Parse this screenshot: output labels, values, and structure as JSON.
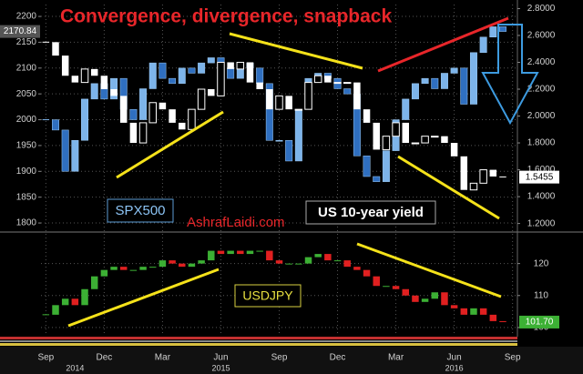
{
  "chart_data": [
    {
      "type": "candlestick",
      "title": "Convergence, divergence, snapback",
      "annotations": [
        "AshrafLaidi.com"
      ],
      "series": [
        {
          "name": "SPX500",
          "color": "#7db4ea",
          "down_color": "#2f6fc0",
          "axis": "y",
          "values": [
            2000,
            1980,
            1900,
            1960,
            2040,
            2070,
            2040,
            2080,
            2020,
            2000,
            2060,
            2110,
            2080,
            2070,
            2100,
            2090,
            2110,
            2120,
            2100,
            2080,
            2110,
            2100,
            2070,
            1960,
            1960,
            1920,
            2020,
            2080,
            2090,
            2080,
            2060,
            2050,
            1930,
            1890,
            1880,
            1940,
            2000,
            2040,
            2070,
            2080,
            2060,
            2090,
            2100,
            2030,
            2130,
            2160,
            2180,
            2170.84,
            null
          ],
          "price_tag": 2170.84
        },
        {
          "name": "US 10-year yield",
          "color": "#ffffff",
          "down_color": "#ffffff",
          "hollow_up": true,
          "axis": "y2",
          "values": [
            2.55,
            2.45,
            2.3,
            2.25,
            2.35,
            2.3,
            2.2,
            2.15,
            1.95,
            1.8,
            1.95,
            2.1,
            2.05,
            1.95,
            1.9,
            2.05,
            2.2,
            2.15,
            2.4,
            2.35,
            2.4,
            2.25,
            2.2,
            2.05,
            2.15,
            2.05,
            2.05,
            2.25,
            2.3,
            2.25,
            2.25,
            2.25,
            2.05,
            1.95,
            1.75,
            1.85,
            1.95,
            1.8,
            1.8,
            1.85,
            1.85,
            1.8,
            1.7,
            1.45,
            1.5,
            1.6,
            1.55,
            1.5455,
            null
          ],
          "price_tag": 1.5455
        }
      ],
      "ylim": [
        1786,
        2223
      ],
      "yticks": [
        1800,
        1850,
        1900,
        1950,
        2000,
        2050,
        2100,
        2150,
        2200
      ],
      "y2lim": [
        1.15,
        2.83
      ],
      "y2ticks": [
        {
          "value": 1.2,
          "label": "1.2000"
        },
        {
          "value": 1.4,
          "label": "1.4000"
        },
        {
          "value": 1.6,
          "label": "1.6000"
        },
        {
          "value": 1.8,
          "label": "1.8000"
        },
        {
          "value": 2.0,
          "label": "2.0000"
        },
        {
          "value": 2.2,
          "label": "2.2000"
        },
        {
          "value": 2.4,
          "label": "2.4000"
        },
        {
          "value": 2.6,
          "label": "2.6000"
        },
        {
          "value": 2.8,
          "label": "2.8000"
        }
      ],
      "y_axis_side": "left",
      "grid": true
    },
    {
      "type": "candlestick",
      "categories": [
        "Sep",
        null,
        null,
        null,
        null,
        null,
        "Dec",
        null,
        null,
        null,
        null,
        null,
        "Mar",
        null,
        null,
        null,
        null,
        null,
        "Jun",
        null,
        null,
        null,
        null,
        null,
        "Sep",
        null,
        null,
        null,
        null,
        null,
        "Dec",
        null,
        null,
        null,
        null,
        null,
        "Mar",
        null,
        null,
        null,
        null,
        null,
        "Jun",
        null,
        null,
        null,
        null,
        null,
        "Sep"
      ],
      "x_group_labels": [
        "2014",
        "2015",
        "2016"
      ],
      "series": [
        {
          "name": "USDJPY",
          "color": "#3cb034",
          "down_color": "#e02020",
          "axis": "y",
          "values": [
            104,
            107,
            109,
            107,
            112,
            116,
            118,
            119,
            118,
            118,
            119,
            119,
            121,
            120,
            119,
            120,
            121,
            124,
            123,
            124,
            123,
            124,
            124,
            121,
            120,
            120,
            120,
            122,
            123,
            121,
            121,
            119,
            118,
            116,
            113,
            113,
            112,
            110,
            108,
            109,
            111,
            107,
            106,
            104,
            106,
            104,
            102,
            101.7,
            null
          ],
          "price_tag": {
            "value": 101.7,
            "label": "101.70"
          }
        }
      ],
      "ylim": [
        97.7,
        129
      ],
      "yticks": [
        100,
        110,
        120
      ],
      "y_axis_side": "right",
      "grid": true
    }
  ]
}
